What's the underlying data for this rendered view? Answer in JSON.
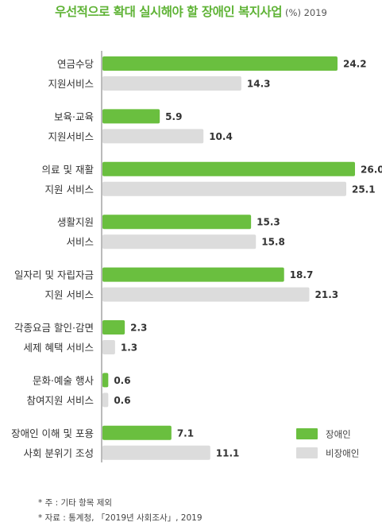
{
  "chart_data": {
    "type": "bar",
    "orientation": "horizontal",
    "title": "우선적으로 확대 실시해야 할 장애인 복지사업",
    "subtitle": "(%) 2019",
    "categories": [
      [
        "연금수당",
        "지원서비스"
      ],
      [
        "보육·교육",
        "지원서비스"
      ],
      [
        "의료 및 재활",
        "지원 서비스"
      ],
      [
        "생활지원",
        "서비스"
      ],
      [
        "일자리 및 자립자금",
        "지원 서비스"
      ],
      [
        "각종요금 할인·감면",
        "세제 혜택 서비스"
      ],
      [
        "문화·예술 행사",
        "참여지원 서비스"
      ],
      [
        "장애인 이해 및 포용",
        "사회 분위기 조성"
      ]
    ],
    "series": [
      {
        "name": "장애인",
        "color": "#6abf3f",
        "values": [
          24.2,
          5.9,
          26.0,
          15.3,
          18.7,
          2.3,
          0.6,
          7.1
        ]
      },
      {
        "name": "비장애인",
        "color": "#dcdcdc",
        "values": [
          14.3,
          10.4,
          25.1,
          15.8,
          21.3,
          1.3,
          0.6,
          11.1
        ]
      }
    ],
    "value_labels": [
      [
        "24.2",
        "5.9",
        "26.0",
        "15.3",
        "18.7",
        "2.3",
        "0.6",
        "7.1"
      ],
      [
        "14.3",
        "10.4",
        "25.1",
        "15.8",
        "21.3",
        "1.3",
        "0.6",
        "11.1"
      ]
    ],
    "xlim": [
      0,
      26.0
    ],
    "legend_position": "bottom-right"
  },
  "notes": [
    "* 주 : 기타 항목 제외",
    "* 자료 : 통계청, 「2019년 사회조사」, 2019"
  ]
}
